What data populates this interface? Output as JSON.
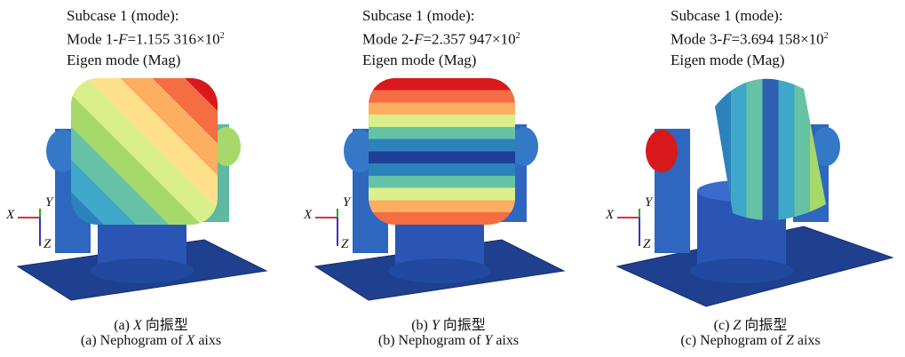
{
  "panels": [
    {
      "subcase": "Subcase 1 (mode):",
      "mode": {
        "prefix": "Mode 1-",
        "var": "F",
        "value": "=1.155 316×10",
        "exp": "2"
      },
      "result": "Eigen mode (Mag)",
      "triad": {
        "x": "X",
        "y": "Y",
        "z": "Z"
      },
      "caption_cn": {
        "tag": "(a)",
        "axis": "X",
        "text": "向振型"
      },
      "caption_en": {
        "prefix": "(a) Nephogram of",
        "axis": "X",
        "suffix": "aixs"
      }
    },
    {
      "subcase": "Subcase 1 (mode):",
      "mode": {
        "prefix": "Mode 2-",
        "var": "F",
        "value": "=2.357 947×10",
        "exp": "2"
      },
      "result": "Eigen mode (Mag)",
      "triad": {
        "x": "X",
        "y": "Y",
        "z": "Z"
      },
      "caption_cn": {
        "tag": "(b)",
        "axis": "Y",
        "text": "向振型"
      },
      "caption_en": {
        "prefix": "(b) Nephogram of",
        "axis": "Y",
        "suffix": "aixs"
      }
    },
    {
      "subcase": "Subcase 1 (mode):",
      "mode": {
        "prefix": "Mode 3-",
        "var": "F",
        "value": "=3.694 158×10",
        "exp": "2"
      },
      "result": "Eigen mode (Mag)",
      "triad": {
        "x": "X",
        "y": "Y",
        "z": "Z"
      },
      "caption_cn": {
        "tag": "(c)",
        "axis": "Z",
        "text": "向振型"
      },
      "caption_en": {
        "prefix": "(c) Nephogram of",
        "axis": "Z",
        "suffix": "aixs"
      }
    }
  ]
}
